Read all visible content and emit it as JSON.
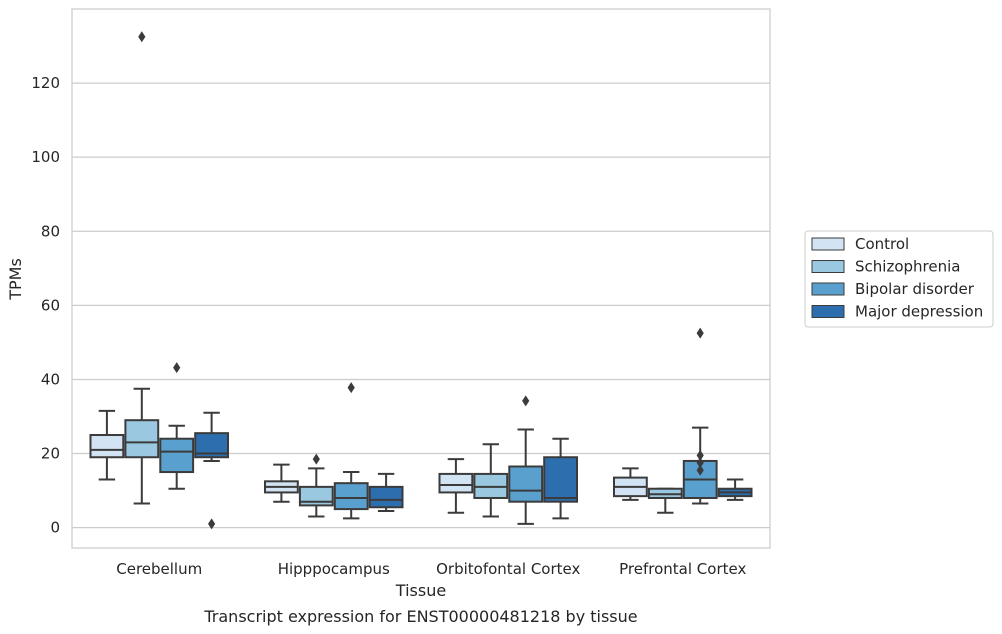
{
  "chart_data": {
    "type": "boxplot",
    "title": "",
    "caption": "Transcript expression for ENST00000481218 by tissue",
    "xlabel": "Tissue",
    "ylabel": "TPMs",
    "ylim": [
      -5.5,
      140
    ],
    "yticks": [
      0,
      20,
      40,
      60,
      80,
      100,
      120
    ],
    "grid": "horizontal",
    "legend_position": "right",
    "categories": [
      "Cerebellum",
      "Hipppocampus",
      "Orbitofontal Cortex",
      "Prefrontal Cortex"
    ],
    "series": [
      {
        "name": "Control",
        "color": "#d2e3f3",
        "boxes": [
          {
            "whislo": 13,
            "q1": 19,
            "med": 21,
            "q3": 25,
            "whishi": 31.5,
            "fliers": []
          },
          {
            "whislo": 7,
            "q1": 9.5,
            "med": 11,
            "q3": 12.5,
            "whishi": 17,
            "fliers": []
          },
          {
            "whislo": 4,
            "q1": 9.5,
            "med": 11.5,
            "q3": 14.5,
            "whishi": 18.5,
            "fliers": []
          },
          {
            "whislo": 7.5,
            "q1": 8.5,
            "med": 11,
            "q3": 13.5,
            "whishi": 16,
            "fliers": []
          }
        ]
      },
      {
        "name": "Schizophrenia",
        "color": "#9ac8e0",
        "boxes": [
          {
            "whislo": 6.5,
            "q1": 19,
            "med": 23,
            "q3": 29,
            "whishi": 37.5,
            "fliers": [
              132.5
            ]
          },
          {
            "whislo": 3,
            "q1": 6,
            "med": 7,
            "q3": 11,
            "whishi": 16,
            "fliers": [
              18.5
            ]
          },
          {
            "whislo": 3,
            "q1": 8,
            "med": 11,
            "q3": 14.5,
            "whishi": 22.5,
            "fliers": []
          },
          {
            "whislo": 4,
            "q1": 8,
            "med": 9,
            "q3": 10.5,
            "whishi": 10.5,
            "fliers": []
          }
        ]
      },
      {
        "name": "Bipolar disorder",
        "color": "#5aa0ce",
        "boxes": [
          {
            "whislo": 10.5,
            "q1": 15,
            "med": 20.5,
            "q3": 24,
            "whishi": 27.5,
            "fliers": [
              43.2
            ]
          },
          {
            "whislo": 2.5,
            "q1": 5,
            "med": 8,
            "q3": 12,
            "whishi": 15,
            "fliers": [
              37.8
            ]
          },
          {
            "whislo": 1,
            "q1": 7,
            "med": 10,
            "q3": 16.5,
            "whishi": 26.5,
            "fliers": [
              34.2
            ]
          },
          {
            "whislo": 6.5,
            "q1": 8,
            "med": 13,
            "q3": 18,
            "whishi": 27,
            "fliers": [
              15.5,
              17.5,
              19.5,
              52.5
            ]
          }
        ]
      },
      {
        "name": "Major depression",
        "color": "#2d6eae",
        "boxes": [
          {
            "whislo": 18,
            "q1": 19,
            "med": 20,
            "q3": 25.5,
            "whishi": 31,
            "fliers": [
              1
            ]
          },
          {
            "whislo": 4.5,
            "q1": 5.5,
            "med": 7.5,
            "q3": 11,
            "whishi": 14.5,
            "fliers": []
          },
          {
            "whislo": 2.5,
            "q1": 7,
            "med": 8,
            "q3": 19,
            "whishi": 24,
            "fliers": []
          },
          {
            "whislo": 7.5,
            "q1": 8.5,
            "med": 9.5,
            "q3": 10.5,
            "whishi": 13,
            "fliers": []
          }
        ]
      }
    ]
  }
}
